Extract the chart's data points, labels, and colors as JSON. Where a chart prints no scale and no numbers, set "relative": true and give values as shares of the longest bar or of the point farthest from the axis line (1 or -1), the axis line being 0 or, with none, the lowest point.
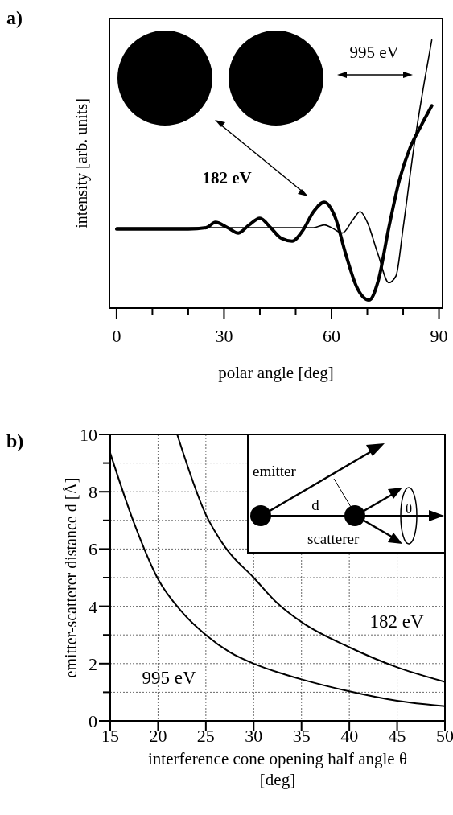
{
  "chart_data": [
    {
      "type": "line",
      "title": "a)",
      "xlabel": "polar angle [deg]",
      "ylabel": "intensity [arb. units]",
      "relative": true,
      "xlim": [
        -2,
        91
      ],
      "xticks": [
        0,
        {
          "value": 10,
          "label": null
        },
        {
          "value": 20,
          "label": null
        },
        30,
        {
          "value": 40,
          "label": null
        },
        {
          "value": 50,
          "label": null
        },
        60,
        {
          "value": 70,
          "label": null
        },
        {
          "value": 80,
          "label": null
        },
        90
      ],
      "grid": false,
      "line_style": "solid",
      "series": [
        {
          "name": "995 eV",
          "color": "#000000",
          "x": [
            0,
            10,
            20,
            30,
            40,
            50,
            55,
            58,
            60,
            63,
            66,
            68,
            70,
            73,
            76,
            78,
            80,
            83,
            86,
            88
          ],
          "values": [
            0.3,
            0.3,
            0.3,
            0.3,
            0.3,
            0.3,
            0.3,
            0.31,
            0.3,
            0.28,
            0.33,
            0.36,
            0.32,
            0.2,
            0.095,
            0.12,
            0.3,
            0.6,
            0.85,
            1.0
          ]
        },
        {
          "name": "182 eV",
          "color": "#000000",
          "x": [
            0,
            10,
            20,
            25,
            27.6,
            31,
            34,
            37,
            40,
            43,
            46,
            49,
            52,
            55,
            58,
            61,
            64,
            67,
            70.5,
            73,
            76,
            79,
            82,
            85,
            88
          ],
          "values": [
            0.295,
            0.295,
            0.295,
            0.3,
            0.32,
            0.3,
            0.28,
            0.31,
            0.335,
            0.3,
            0.26,
            0.25,
            0.29,
            0.36,
            0.395,
            0.34,
            0.2,
            0.08,
            0.03,
            0.1,
            0.3,
            0.48,
            0.6,
            0.68,
            0.755
          ]
        }
      ]
    },
    {
      "type": "line",
      "title": "b)",
      "xlabel": "interference cone opening half angle θ [deg]",
      "ylabel": "emitter-scatterer distance d [Å]",
      "xlim": [
        15,
        50
      ],
      "ylim": [
        0,
        10
      ],
      "xticks": [
        15,
        20,
        25,
        30,
        35,
        40,
        45,
        50
      ],
      "yticks": [
        0,
        {
          "value": 1,
          "label": null
        },
        2,
        {
          "value": 3,
          "label": null
        },
        4,
        {
          "value": 5,
          "label": null
        },
        6,
        {
          "value": 7,
          "label": null
        },
        8,
        {
          "value": 9,
          "label": null
        },
        10
      ],
      "grid": true,
      "line_style": "solid",
      "annotations": [
        "emitter",
        "d",
        "scatterer",
        "θ"
      ],
      "series": [
        {
          "name": "995 eV",
          "color": "#000000",
          "x": [
            15,
            17.5,
            20,
            22.5,
            25,
            27.5,
            30,
            32.5,
            35,
            40,
            45,
            50
          ],
          "values": [
            9.35,
            6.9,
            4.95,
            3.8,
            3.0,
            2.4,
            2.0,
            1.7,
            1.45,
            1.03,
            0.7,
            0.51
          ]
        },
        {
          "name": "182 eV",
          "color": "#000000",
          "x": [
            22,
            25,
            27,
            30,
            32.5,
            35,
            40,
            45,
            50
          ],
          "values": [
            10,
            7.2,
            6.07,
            5.0,
            4.1,
            3.45,
            2.57,
            1.87,
            1.36
          ]
        }
      ]
    }
  ]
}
